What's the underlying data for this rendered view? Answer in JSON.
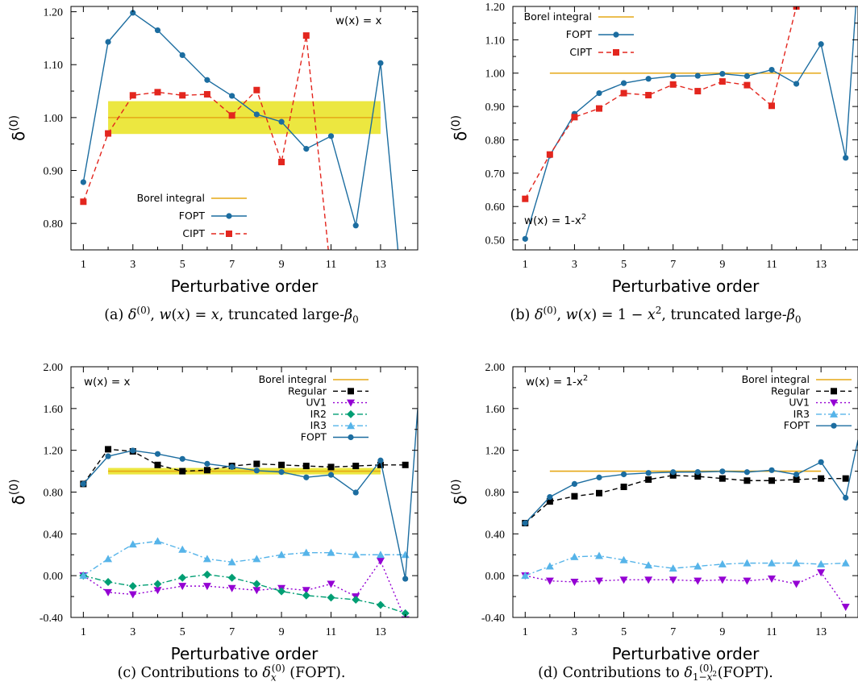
{
  "figure": {
    "captions": [
      "(a) δ(0), w(x) = x, truncated large-β0",
      "(b) δ(0), w(x) = 1 − x², truncated large-β0",
      "(c) Contributions to δx(0) (FOPT).",
      "(d) Contributions to δ1−x²(0) (FOPT)."
    ]
  },
  "chart_data": [
    {
      "type": "line",
      "panel": "a",
      "caption_index": 0,
      "xlabel": "Perturbative order",
      "ylabel": "δ(0)",
      "xlim": [
        0.5,
        14.5
      ],
      "ylim": [
        0.75,
        1.21
      ],
      "xticks": [
        1,
        3,
        5,
        7,
        9,
        11,
        13
      ],
      "yticks": [
        0.8,
        0.9,
        1.0,
        1.1,
        1.2
      ],
      "ytick_labels": [
        "0.80",
        "0.90",
        "1.00",
        "1.10",
        "1.20"
      ],
      "annotation": "w(x) = x",
      "annotation_pos": "top-right",
      "legend": [
        "Borel integral",
        "FOPT",
        "CIPT"
      ],
      "legend_pos": "bottom-left",
      "band": {
        "x": [
          2,
          13
        ],
        "y": [
          0.969,
          1.031
        ],
        "color": "#ece740"
      },
      "series": [
        {
          "name": "Borel integral",
          "style": "hline",
          "color": "#e6a817",
          "x": [
            2,
            13
          ],
          "values": [
            1.0,
            1.0
          ]
        },
        {
          "name": "FOPT",
          "style": "solid",
          "marker": "circle",
          "color": "#1c6da0",
          "x": [
            1,
            2,
            3,
            4,
            5,
            6,
            7,
            8,
            9,
            10,
            11,
            12,
            13,
            14
          ],
          "values": [
            0.878,
            1.143,
            1.198,
            1.165,
            1.118,
            1.071,
            1.041,
            1.006,
            0.992,
            0.941,
            0.965,
            0.796,
            1.103,
            0.6
          ]
        },
        {
          "name": "CIPT",
          "style": "dashed",
          "marker": "square",
          "color": "#e3261e",
          "x": [
            1,
            2,
            3,
            4,
            5,
            6,
            7,
            8,
            9,
            10,
            11
          ],
          "values": [
            0.841,
            0.97,
            1.042,
            1.048,
            1.042,
            1.044,
            1.004,
            1.052,
            0.916,
            1.155,
            0.7
          ]
        }
      ]
    },
    {
      "type": "line",
      "panel": "b",
      "caption_index": 1,
      "xlabel": "Perturbative order",
      "ylabel": "δ(0)",
      "xlim": [
        0.5,
        14.5
      ],
      "ylim": [
        0.47,
        1.2
      ],
      "xticks": [
        1,
        3,
        5,
        7,
        9,
        11,
        13
      ],
      "yticks": [
        0.5,
        0.6,
        0.7,
        0.8,
        0.9,
        1.0,
        1.1,
        1.2
      ],
      "ytick_labels": [
        "0.50",
        "0.60",
        "0.70",
        "0.80",
        "0.90",
        "1.00",
        "1.10",
        "1.20"
      ],
      "annotation": "w(x) = 1-x",
      "annotation_sup": "2",
      "annotation_pos": "bottom-left",
      "legend": [
        "Borel integral",
        "FOPT",
        "CIPT"
      ],
      "legend_pos": "top-left",
      "series": [
        {
          "name": "Borel integral",
          "style": "hline",
          "color": "#e6a817",
          "x": [
            2,
            13
          ],
          "values": [
            1.0,
            1.0
          ]
        },
        {
          "name": "FOPT",
          "style": "solid",
          "marker": "circle",
          "color": "#1c6da0",
          "x": [
            1,
            2,
            3,
            4,
            5,
            6,
            7,
            8,
            9,
            10,
            11,
            12,
            13,
            14,
            14.5
          ],
          "values": [
            0.503,
            0.753,
            0.878,
            0.94,
            0.97,
            0.983,
            0.991,
            0.992,
            0.998,
            0.991,
            1.01,
            0.968,
            1.087,
            0.746,
            1.3
          ]
        },
        {
          "name": "CIPT",
          "style": "dashed",
          "marker": "square",
          "color": "#e3261e",
          "x": [
            1,
            2,
            3,
            4,
            5,
            6,
            7,
            8,
            9,
            10,
            11,
            12
          ],
          "values": [
            0.623,
            0.756,
            0.868,
            0.894,
            0.94,
            0.934,
            0.966,
            0.946,
            0.975,
            0.964,
            0.902,
            1.2
          ]
        }
      ]
    },
    {
      "type": "line",
      "panel": "c",
      "caption_index": 2,
      "xlabel": "Perturbative order",
      "ylabel": "δ(0)",
      "xlim": [
        0.5,
        14.5
      ],
      "ylim": [
        -0.4,
        2.0
      ],
      "xticks": [
        1,
        3,
        5,
        7,
        9,
        11,
        13
      ],
      "yticks": [
        -0.4,
        0.0,
        0.4,
        0.8,
        1.2,
        1.6,
        2.0
      ],
      "ytick_labels": [
        "-0.40",
        "0.00",
        "0.40",
        "0.80",
        "1.20",
        "1.60",
        "2.00"
      ],
      "annotation": "w(x) = x",
      "annotation_pos": "top-left",
      "legend": [
        "Borel integral",
        "Regular",
        "UV1",
        "IR2",
        "IR3",
        "FOPT"
      ],
      "legend_pos": "top-right",
      "band": {
        "x": [
          2,
          13
        ],
        "y": [
          0.969,
          1.031
        ],
        "color": "#ece740"
      },
      "series": [
        {
          "name": "Borel integral",
          "style": "hline",
          "color": "#e6a817",
          "x": [
            2,
            13
          ],
          "values": [
            1.0,
            1.0
          ]
        },
        {
          "name": "Regular",
          "style": "dashed",
          "marker": "square",
          "color": "#000000",
          "x": [
            1,
            2,
            3,
            4,
            5,
            6,
            7,
            8,
            9,
            10,
            11,
            12,
            13,
            14
          ],
          "values": [
            0.878,
            1.21,
            1.19,
            1.06,
            1.0,
            1.01,
            1.05,
            1.07,
            1.06,
            1.05,
            1.04,
            1.05,
            1.06,
            1.06
          ]
        },
        {
          "name": "UV1",
          "style": "dotted",
          "marker": "triangle-down",
          "color": "#9400d3",
          "x": [
            1,
            2,
            3,
            4,
            5,
            6,
            7,
            8,
            9,
            10,
            11,
            12,
            13,
            14
          ],
          "values": [
            0.0,
            -0.16,
            -0.18,
            -0.14,
            -0.1,
            -0.1,
            -0.12,
            -0.14,
            -0.12,
            -0.14,
            -0.08,
            -0.2,
            0.14,
            -0.42
          ]
        },
        {
          "name": "IR2",
          "style": "dashdot",
          "marker": "diamond",
          "color": "#009e73",
          "x": [
            1,
            2,
            3,
            4,
            5,
            6,
            7,
            8,
            9,
            10,
            11,
            12,
            13,
            14
          ],
          "values": [
            0.0,
            -0.06,
            -0.1,
            -0.08,
            -0.02,
            0.01,
            -0.02,
            -0.08,
            -0.15,
            -0.19,
            -0.21,
            -0.23,
            -0.28,
            -0.36
          ]
        },
        {
          "name": "IR3",
          "style": "dashdot",
          "marker": "triangle-up",
          "color": "#56b4e9",
          "x": [
            1,
            2,
            3,
            4,
            5,
            6,
            7,
            8,
            9,
            10,
            11,
            12,
            13,
            14
          ],
          "values": [
            0.0,
            0.16,
            0.3,
            0.33,
            0.25,
            0.16,
            0.13,
            0.16,
            0.2,
            0.22,
            0.22,
            0.2,
            0.2,
            0.2
          ]
        },
        {
          "name": "FOPT",
          "style": "solid",
          "marker": "circle",
          "color": "#1c6da0",
          "x": [
            1,
            2,
            3,
            4,
            5,
            6,
            7,
            8,
            9,
            10,
            11,
            12,
            13,
            14,
            14.5
          ],
          "values": [
            0.878,
            1.143,
            1.198,
            1.165,
            1.118,
            1.071,
            1.041,
            1.006,
            0.992,
            0.941,
            0.965,
            0.796,
            1.103,
            -0.03,
            1.6
          ]
        }
      ]
    },
    {
      "type": "line",
      "panel": "d",
      "caption_index": 3,
      "xlabel": "Perturbative order",
      "ylabel": "δ(0)",
      "xlim": [
        0.5,
        14.5
      ],
      "ylim": [
        -0.4,
        2.0
      ],
      "xticks": [
        1,
        3,
        5,
        7,
        9,
        11,
        13
      ],
      "yticks": [
        -0.4,
        0.0,
        0.4,
        0.8,
        1.2,
        1.6,
        2.0
      ],
      "ytick_labels": [
        "-0.40",
        "0.00",
        "0.40",
        "0.80",
        "1.20",
        "1.60",
        "2.00"
      ],
      "annotation": "w(x) = 1-x",
      "annotation_sup": "2",
      "annotation_pos": "top-left",
      "legend": [
        "Borel integral",
        "Regular",
        "UV1",
        "IR3",
        "FOPT"
      ],
      "legend_pos": "top-right",
      "series": [
        {
          "name": "Borel integral",
          "style": "hline",
          "color": "#e6a817",
          "x": [
            2,
            13
          ],
          "values": [
            1.0,
            1.0
          ]
        },
        {
          "name": "Regular",
          "style": "dashed",
          "marker": "square",
          "color": "#000000",
          "x": [
            1,
            2,
            3,
            4,
            5,
            6,
            7,
            8,
            9,
            10,
            11,
            12,
            13,
            14
          ],
          "values": [
            0.503,
            0.71,
            0.76,
            0.79,
            0.85,
            0.92,
            0.96,
            0.95,
            0.93,
            0.91,
            0.91,
            0.92,
            0.93,
            0.93
          ]
        },
        {
          "name": "UV1",
          "style": "dotted",
          "marker": "triangle-down",
          "color": "#9400d3",
          "x": [
            1,
            2,
            3,
            4,
            5,
            6,
            7,
            8,
            9,
            10,
            11,
            12,
            13,
            14
          ],
          "values": [
            0.0,
            -0.05,
            -0.06,
            -0.05,
            -0.04,
            -0.04,
            -0.04,
            -0.05,
            -0.04,
            -0.05,
            -0.03,
            -0.08,
            0.03,
            -0.3
          ]
        },
        {
          "name": "IR3",
          "style": "dashdot",
          "marker": "triangle-up",
          "color": "#56b4e9",
          "x": [
            1,
            2,
            3,
            4,
            5,
            6,
            7,
            8,
            9,
            10,
            11,
            12,
            13,
            14
          ],
          "values": [
            0.0,
            0.09,
            0.18,
            0.19,
            0.15,
            0.1,
            0.07,
            0.09,
            0.11,
            0.12,
            0.12,
            0.12,
            0.11,
            0.12
          ]
        },
        {
          "name": "FOPT",
          "style": "solid",
          "marker": "circle",
          "color": "#1c6da0",
          "x": [
            1,
            2,
            3,
            4,
            5,
            6,
            7,
            8,
            9,
            10,
            11,
            12,
            13,
            14,
            14.5
          ],
          "values": [
            0.503,
            0.753,
            0.878,
            0.94,
            0.97,
            0.983,
            0.991,
            0.992,
            0.998,
            0.991,
            1.01,
            0.968,
            1.087,
            0.746,
            1.3
          ]
        }
      ]
    }
  ]
}
